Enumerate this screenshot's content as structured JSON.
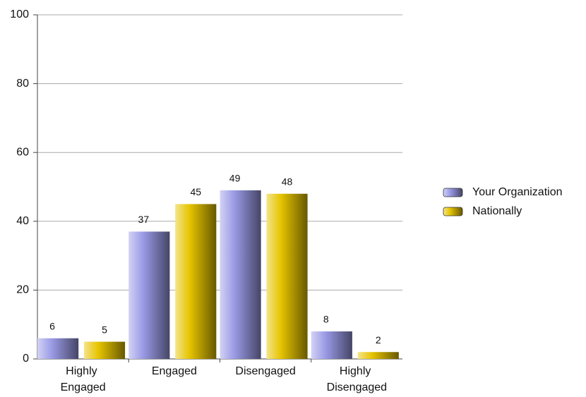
{
  "chart_data": {
    "type": "bar",
    "categories": [
      "Highly Engaged",
      "Engaged",
      "Disengaged",
      "Highly Disengaged"
    ],
    "series": [
      {
        "name": "Your Organization",
        "color": "#9a9ae6",
        "values": [
          6,
          37,
          49,
          8
        ]
      },
      {
        "name": "Nationally",
        "color": "#e6c400",
        "values": [
          5,
          45,
          48,
          2
        ]
      }
    ],
    "ylim": [
      0,
      100
    ],
    "yticks": [
      0,
      20,
      40,
      60,
      80,
      100
    ],
    "grid": true,
    "legend": "right"
  }
}
